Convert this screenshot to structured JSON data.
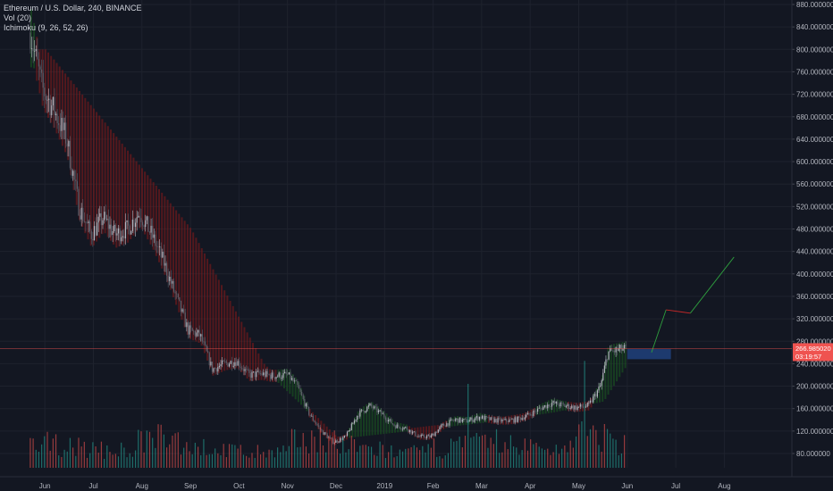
{
  "header": {
    "symbol_line": "Ethereum / U.S. Dollar, 240, BINANCE",
    "vol_line": "Vol (20)",
    "ichimoku_line": "Ichimoku (9, 26, 52, 26)"
  },
  "colors": {
    "background": "#131722",
    "grid": "#1e222d",
    "up": "#26a69a",
    "down": "#ef5350",
    "ichimoku_red": "#8b1a1a",
    "ichimoku_green": "#1b5e20",
    "price_label_bg": "#ef5350",
    "forecast_box": "#1d3a6e",
    "forecast_green": "#2e9e3e",
    "forecast_red": "#c62828"
  },
  "chart_data": {
    "type": "candlestick",
    "price_axis": {
      "min": 80,
      "max": 880,
      "ticks": [
        "880.000000",
        "840.000000",
        "800.000000",
        "760.000000",
        "720.000000",
        "680.000000",
        "640.000000",
        "600.000000",
        "560.000000",
        "520.000000",
        "480.000000",
        "440.000000",
        "400.000000",
        "360.000000",
        "320.000000",
        "280.000000",
        "240.000000",
        "200.000000",
        "160.000000",
        "120.000000",
        "80.000000"
      ],
      "tick_values": [
        880,
        840,
        800,
        760,
        720,
        680,
        640,
        600,
        560,
        520,
        480,
        440,
        400,
        360,
        320,
        280,
        240,
        200,
        160,
        120,
        80
      ]
    },
    "time_axis": {
      "labels": [
        "Jun",
        "Jul",
        "Aug",
        "Sep",
        "Oct",
        "Nov",
        "Dec",
        "2019",
        "Feb",
        "Mar",
        "Apr",
        "May",
        "Jun",
        "Jul",
        "Aug"
      ],
      "month_index": [
        1,
        2,
        3,
        4,
        5,
        6,
        7,
        8,
        9,
        10,
        11,
        12,
        13,
        14,
        15
      ]
    },
    "current_price": {
      "value": 266.98,
      "label": "266.985020",
      "countdown": "03:19:57"
    },
    "price_path": [
      [
        0.7,
        830
      ],
      [
        0.95,
        730
      ],
      [
        1.2,
        690
      ],
      [
        1.45,
        640
      ],
      [
        1.7,
        520
      ],
      [
        1.95,
        470
      ],
      [
        2.2,
        500
      ],
      [
        2.45,
        470
      ],
      [
        2.7,
        480
      ],
      [
        2.95,
        510
      ],
      [
        3.2,
        470
      ],
      [
        3.45,
        420
      ],
      [
        3.7,
        360
      ],
      [
        3.95,
        300
      ],
      [
        4.2,
        290
      ],
      [
        4.45,
        230
      ],
      [
        4.7,
        240
      ],
      [
        4.95,
        245
      ],
      [
        5.2,
        220
      ],
      [
        5.45,
        222
      ],
      [
        5.7,
        218
      ],
      [
        6.0,
        220
      ],
      [
        6.2,
        200
      ],
      [
        6.45,
        150
      ],
      [
        6.7,
        120
      ],
      [
        6.95,
        100
      ],
      [
        7.2,
        110
      ],
      [
        7.45,
        150
      ],
      [
        7.7,
        165
      ],
      [
        7.95,
        150
      ],
      [
        8.2,
        130
      ],
      [
        8.45,
        125
      ],
      [
        8.7,
        110
      ],
      [
        8.95,
        110
      ],
      [
        9.2,
        130
      ],
      [
        9.45,
        140
      ],
      [
        9.7,
        138
      ],
      [
        9.95,
        145
      ],
      [
        10.2,
        140
      ],
      [
        10.45,
        138
      ],
      [
        10.7,
        140
      ],
      [
        10.95,
        148
      ],
      [
        11.2,
        160
      ],
      [
        11.45,
        170
      ],
      [
        11.7,
        165
      ],
      [
        11.95,
        162
      ],
      [
        12.2,
        165
      ],
      [
        12.45,
        200
      ],
      [
        12.6,
        260
      ],
      [
        12.85,
        265
      ],
      [
        13.0,
        266.98
      ]
    ],
    "cloud_band": [
      [
        1.0,
        800
      ],
      [
        4.0,
        480
      ],
      [
        5.5,
        240
      ],
      [
        7.0,
        110
      ],
      [
        8.5,
        125
      ],
      [
        10.0,
        140
      ],
      [
        11.5,
        160
      ],
      [
        12.5,
        180
      ],
      [
        13.0,
        250
      ]
    ],
    "volume_values": [
      28,
      32,
      30,
      26,
      24,
      22,
      25,
      34,
      38,
      35,
      30,
      26,
      24,
      22,
      20,
      18,
      22,
      34,
      40,
      36,
      28,
      26,
      24,
      22,
      18,
      20,
      26,
      28,
      30,
      32,
      34,
      30,
      28,
      26,
      24,
      40,
      45,
      38,
      30
    ],
    "forecast": {
      "box": {
        "x_from": 13.0,
        "x_to": 13.9,
        "price_from": 248,
        "price_to": 266
      },
      "path": [
        [
          13.5,
          260
        ],
        [
          13.8,
          336
        ],
        [
          14.3,
          330
        ],
        [
          15.2,
          430
        ]
      ]
    }
  }
}
